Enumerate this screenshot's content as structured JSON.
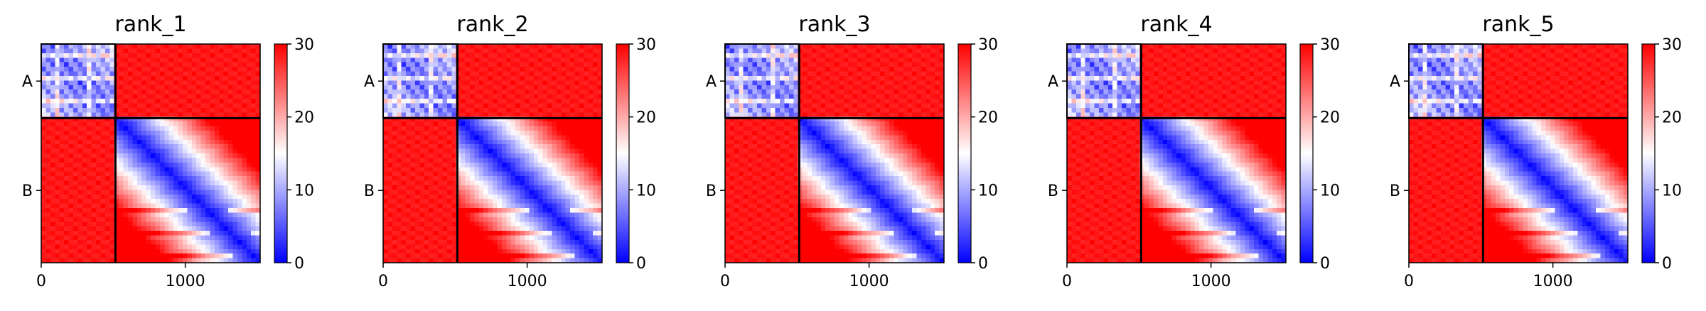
{
  "figure": {
    "panel_count": 5
  },
  "colors": {
    "cmap_low": "#0000ff",
    "cmap_mid": "#ffffff",
    "cmap_high": "#ff0000",
    "block_border": "#000000"
  },
  "colorbar": {
    "range": [
      0,
      30
    ],
    "ticks": [
      "0",
      "10",
      "20",
      "30"
    ]
  },
  "chart_data": [
    {
      "type": "heatmap",
      "title": "rank_1",
      "xlim": [
        0,
        1520
      ],
      "x_ticks": [
        0,
        1000
      ],
      "x_tick_labels": [
        "0",
        "1000"
      ],
      "y_tick_labels": [
        "A",
        "B"
      ],
      "block_boundary": 515,
      "value_range": [
        0,
        30
      ],
      "colorbar_ticks": [
        0,
        10,
        20,
        30
      ],
      "off_diagonal_value": 30
    },
    {
      "type": "heatmap",
      "title": "rank_2",
      "xlim": [
        0,
        1520
      ],
      "x_ticks": [
        0,
        1000
      ],
      "x_tick_labels": [
        "0",
        "1000"
      ],
      "y_tick_labels": [
        "A",
        "B"
      ],
      "block_boundary": 515,
      "value_range": [
        0,
        30
      ],
      "colorbar_ticks": [
        0,
        10,
        20,
        30
      ],
      "off_diagonal_value": 30
    },
    {
      "type": "heatmap",
      "title": "rank_3",
      "xlim": [
        0,
        1520
      ],
      "x_ticks": [
        0,
        1000
      ],
      "x_tick_labels": [
        "0",
        "1000"
      ],
      "y_tick_labels": [
        "A",
        "B"
      ],
      "block_boundary": 515,
      "value_range": [
        0,
        30
      ],
      "colorbar_ticks": [
        0,
        10,
        20,
        30
      ],
      "off_diagonal_value": 30
    },
    {
      "type": "heatmap",
      "title": "rank_4",
      "xlim": [
        0,
        1520
      ],
      "x_ticks": [
        0,
        1000
      ],
      "x_tick_labels": [
        "0",
        "1000"
      ],
      "y_tick_labels": [
        "A",
        "B"
      ],
      "block_boundary": 515,
      "value_range": [
        0,
        30
      ],
      "colorbar_ticks": [
        0,
        10,
        20,
        30
      ],
      "off_diagonal_value": 30
    },
    {
      "type": "heatmap",
      "title": "rank_5",
      "xlim": [
        0,
        1520
      ],
      "x_ticks": [
        0,
        1000
      ],
      "x_tick_labels": [
        "0",
        "1000"
      ],
      "y_tick_labels": [
        "A",
        "B"
      ],
      "block_boundary": 515,
      "value_range": [
        0,
        30
      ],
      "colorbar_ticks": [
        0,
        10,
        20,
        30
      ],
      "off_diagonal_value": 30
    }
  ]
}
